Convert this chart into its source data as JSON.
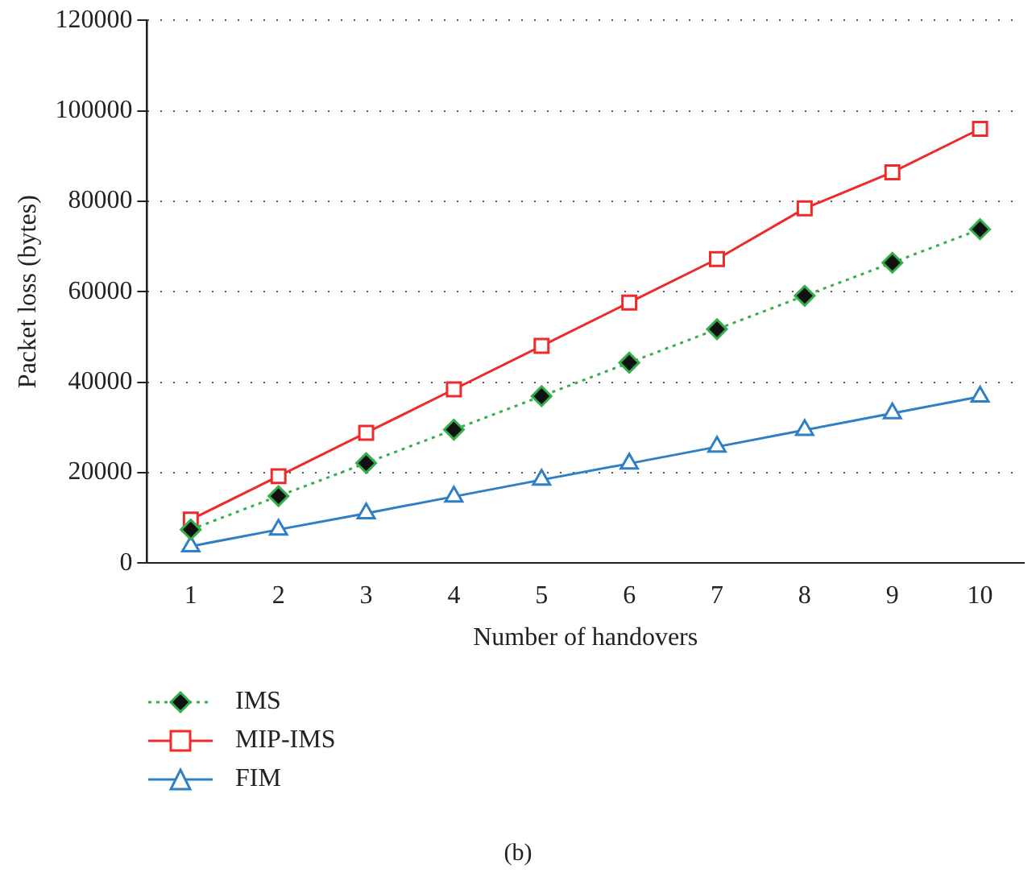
{
  "chart_data": {
    "type": "line",
    "xlabel": "Number of handovers",
    "ylabel": "Packet loss (bytes)",
    "categories": [
      "1",
      "2",
      "3",
      "4",
      "5",
      "6",
      "7",
      "8",
      "9",
      "10"
    ],
    "series": [
      {
        "name": "IMS",
        "color": "#33b04a",
        "marker": "diamond",
        "line_style": "dotted",
        "values": [
          7400,
          14800,
          22100,
          29500,
          36900,
          44300,
          51700,
          59100,
          66400,
          73800
        ]
      },
      {
        "name": "MIP-IMS",
        "color": "#ee2a2a",
        "marker": "square",
        "line_style": "solid",
        "values": [
          9600,
          19200,
          28800,
          38400,
          48000,
          57600,
          67200,
          78400,
          86400,
          96000
        ]
      },
      {
        "name": "FIM",
        "color": "#2f7fc4",
        "marker": "triangle",
        "line_style": "solid",
        "values": [
          3700,
          7400,
          11000,
          14700,
          18400,
          22000,
          25700,
          29400,
          33100,
          36800
        ]
      }
    ],
    "ylim": [
      0,
      120000
    ],
    "yticks": [
      0,
      20000,
      40000,
      60000,
      80000,
      100000,
      120000
    ],
    "grid": "y",
    "legend": "bottom left",
    "annotations": [
      "(b)"
    ]
  }
}
